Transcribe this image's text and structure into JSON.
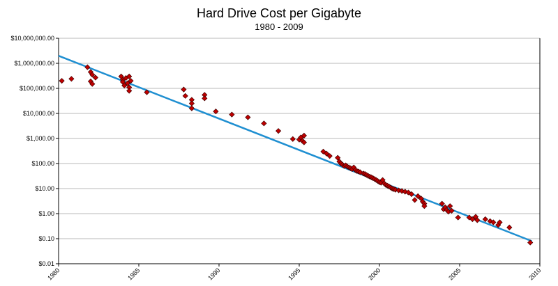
{
  "chart_data": {
    "type": "scatter",
    "title": "Hard Drive Cost per Gigabyte",
    "subtitle": "1980 - 2009",
    "xlabel": "",
    "ylabel": "",
    "y_scale": "log",
    "xlim": [
      1980,
      2010
    ],
    "ylim": [
      0.01,
      10000000
    ],
    "x_ticks": [
      1980,
      1985,
      1990,
      1995,
      2000,
      2005,
      2010
    ],
    "x_tick_labels": [
      "1980",
      "1985",
      "1990",
      "1995",
      "2000",
      "2005",
      "2010"
    ],
    "y_ticks": [
      0.01,
      0.1,
      1,
      10,
      100,
      1000,
      10000,
      100000,
      1000000,
      10000000
    ],
    "y_tick_labels": [
      "$0.01",
      "$0.10",
      "$1.00",
      "$10.00",
      "$100.00",
      "$1,000.00",
      "$10,000.00",
      "$100,000.00",
      "$1,000,000.00",
      "$10,000,000.00"
    ],
    "grid": "horizontal",
    "legend": "none",
    "colors": {
      "marker": "#c00000",
      "marker_edge": "#400000",
      "trend": "#1f8fd1",
      "grid": "#b8b8b8"
    },
    "series": [
      {
        "points": [
          [
            1980.2,
            200000
          ],
          [
            1980.8,
            240000
          ],
          [
            1981.8,
            700000
          ],
          [
            1982.0,
            450000
          ],
          [
            1982.1,
            350000
          ],
          [
            1982.0,
            190000
          ],
          [
            1982.1,
            150000
          ],
          [
            1982.3,
            270000
          ],
          [
            1983.9,
            300000
          ],
          [
            1984.0,
            220000
          ],
          [
            1984.0,
            180000
          ],
          [
            1984.1,
            130000
          ],
          [
            1984.2,
            260000
          ],
          [
            1984.3,
            160000
          ],
          [
            1984.4,
            110000
          ],
          [
            1984.4,
            300000
          ],
          [
            1984.5,
            200000
          ],
          [
            1984.4,
            80000
          ],
          [
            1985.5,
            70000
          ],
          [
            1987.8,
            90000
          ],
          [
            1987.9,
            50000
          ],
          [
            1988.3,
            35000
          ],
          [
            1988.3,
            25000
          ],
          [
            1988.3,
            16000
          ],
          [
            1989.1,
            55000
          ],
          [
            1989.1,
            40000
          ],
          [
            1989.8,
            12000
          ],
          [
            1990.8,
            9000
          ],
          [
            1991.8,
            7000
          ],
          [
            1992.8,
            4000
          ],
          [
            1993.7,
            2000
          ],
          [
            1994.6,
            950
          ],
          [
            1995.0,
            900
          ],
          [
            1995.1,
            1100
          ],
          [
            1995.2,
            800
          ],
          [
            1995.3,
            1300
          ],
          [
            1995.3,
            700
          ],
          [
            1996.5,
            300
          ],
          [
            1996.7,
            250
          ],
          [
            1996.9,
            200
          ],
          [
            1997.4,
            170
          ],
          [
            1997.5,
            120
          ],
          [
            1997.6,
            100
          ],
          [
            1997.7,
            90
          ],
          [
            1997.8,
            80
          ],
          [
            1997.9,
            85
          ],
          [
            1998.0,
            75
          ],
          [
            1998.1,
            70
          ],
          [
            1998.2,
            65
          ],
          [
            1998.3,
            60
          ],
          [
            1998.4,
            70
          ],
          [
            1998.5,
            55
          ],
          [
            1998.6,
            50
          ],
          [
            1998.7,
            48
          ],
          [
            1998.8,
            45
          ],
          [
            1999.0,
            40
          ],
          [
            1999.1,
            38
          ],
          [
            1999.2,
            35
          ],
          [
            1999.3,
            32
          ],
          [
            1999.4,
            30
          ],
          [
            1999.5,
            28
          ],
          [
            1999.6,
            26
          ],
          [
            1999.7,
            24
          ],
          [
            1999.8,
            22
          ],
          [
            1999.9,
            20
          ],
          [
            2000.0,
            18
          ],
          [
            2000.1,
            17
          ],
          [
            2000.2,
            22
          ],
          [
            2000.3,
            16
          ],
          [
            2000.4,
            14
          ],
          [
            2000.5,
            13
          ],
          [
            2000.6,
            12
          ],
          [
            2000.7,
            11
          ],
          [
            2000.8,
            10
          ],
          [
            2000.9,
            9.5
          ],
          [
            2001.0,
            9
          ],
          [
            2001.2,
            8.5
          ],
          [
            2001.4,
            8
          ],
          [
            2001.6,
            7.5
          ],
          [
            2001.8,
            7
          ],
          [
            2002.0,
            6
          ],
          [
            2002.2,
            3.5
          ],
          [
            2002.4,
            5
          ],
          [
            2002.6,
            4
          ],
          [
            2002.7,
            3
          ],
          [
            2002.8,
            2.5
          ],
          [
            2002.8,
            2
          ],
          [
            2003.9,
            2.5
          ],
          [
            2004.0,
            1.5
          ],
          [
            2004.1,
            1.8
          ],
          [
            2004.2,
            1.4
          ],
          [
            2004.3,
            1.2
          ],
          [
            2004.4,
            2.0
          ],
          [
            2004.5,
            1.3
          ],
          [
            2004.9,
            0.7
          ],
          [
            2005.6,
            0.7
          ],
          [
            2005.8,
            0.6
          ],
          [
            2006.0,
            0.75
          ],
          [
            2006.1,
            0.55
          ],
          [
            2006.6,
            0.6
          ],
          [
            2006.9,
            0.5
          ],
          [
            2007.1,
            0.45
          ],
          [
            2007.4,
            0.35
          ],
          [
            2007.5,
            0.45
          ],
          [
            2008.1,
            0.28
          ],
          [
            2009.4,
            0.07
          ]
        ]
      }
    ],
    "trendline": {
      "x": [
        1980,
        2009.5
      ],
      "y": [
        2000000,
        0.08
      ]
    }
  }
}
